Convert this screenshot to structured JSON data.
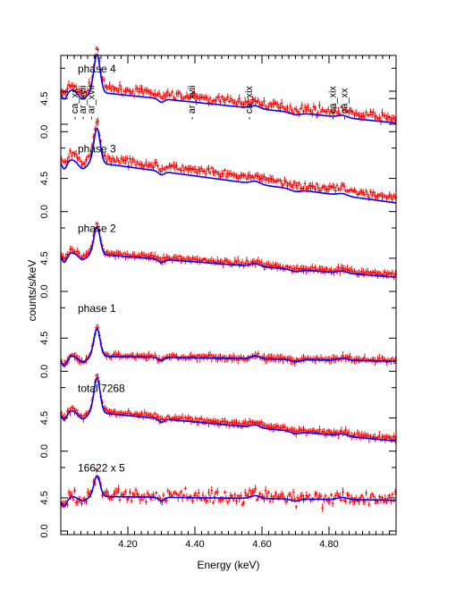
{
  "chart_data": {
    "type": "line",
    "xlabel": "Energy (keV)",
    "ylabel": "counts/s/keV",
    "xlim": [
      4.0,
      5.0
    ],
    "x_ticks": [
      "4.20",
      "4.40",
      "4.60",
      "4.80"
    ],
    "y_tick_labels": [
      "0.0",
      "4.5"
    ],
    "line_labels": [
      {
        "text": "ca_xx",
        "energy": 4.05
      },
      {
        "text": "ar_xvii",
        "energy": 4.075
      },
      {
        "text": "ar_xvii",
        "energy": 4.1
      },
      {
        "text": "ar_xvii",
        "energy": 4.4
      },
      {
        "text": "ca_xix",
        "energy": 4.57
      },
      {
        "text": "ca_xix",
        "energy": 4.82
      },
      {
        "text": "ca_xx",
        "energy": 4.855
      }
    ],
    "data_color": "#ff0000",
    "model_color": "#0000ff",
    "panels": [
      {
        "label": "phase 4",
        "model_start": 0.6,
        "model_end": 0.1,
        "data_offset": 0.07,
        "peak": 0.55,
        "noise": 0.05
      },
      {
        "label": "phase 3",
        "model_start": 0.75,
        "model_end": 0.1,
        "data_offset": 0.08,
        "peak": 0.5,
        "noise": 0.05
      },
      {
        "label": "phase 2",
        "model_start": 0.55,
        "model_end": 0.18,
        "data_offset": 0.03,
        "peak": 0.4,
        "noise": 0.03
      },
      {
        "label": "phase 1",
        "model_start": 0.2,
        "model_end": 0.12,
        "data_offset": 0.01,
        "peak": 0.4,
        "noise": 0.03
      },
      {
        "label": "total 7268",
        "model_start": 0.58,
        "model_end": 0.12,
        "data_offset": 0.03,
        "peak": 0.5,
        "noise": 0.03
      },
      {
        "label": "16622 x 5",
        "model_start": 0.48,
        "model_end": 0.42,
        "data_offset": 0.02,
        "peak": 0.3,
        "noise": 0.1
      }
    ]
  }
}
